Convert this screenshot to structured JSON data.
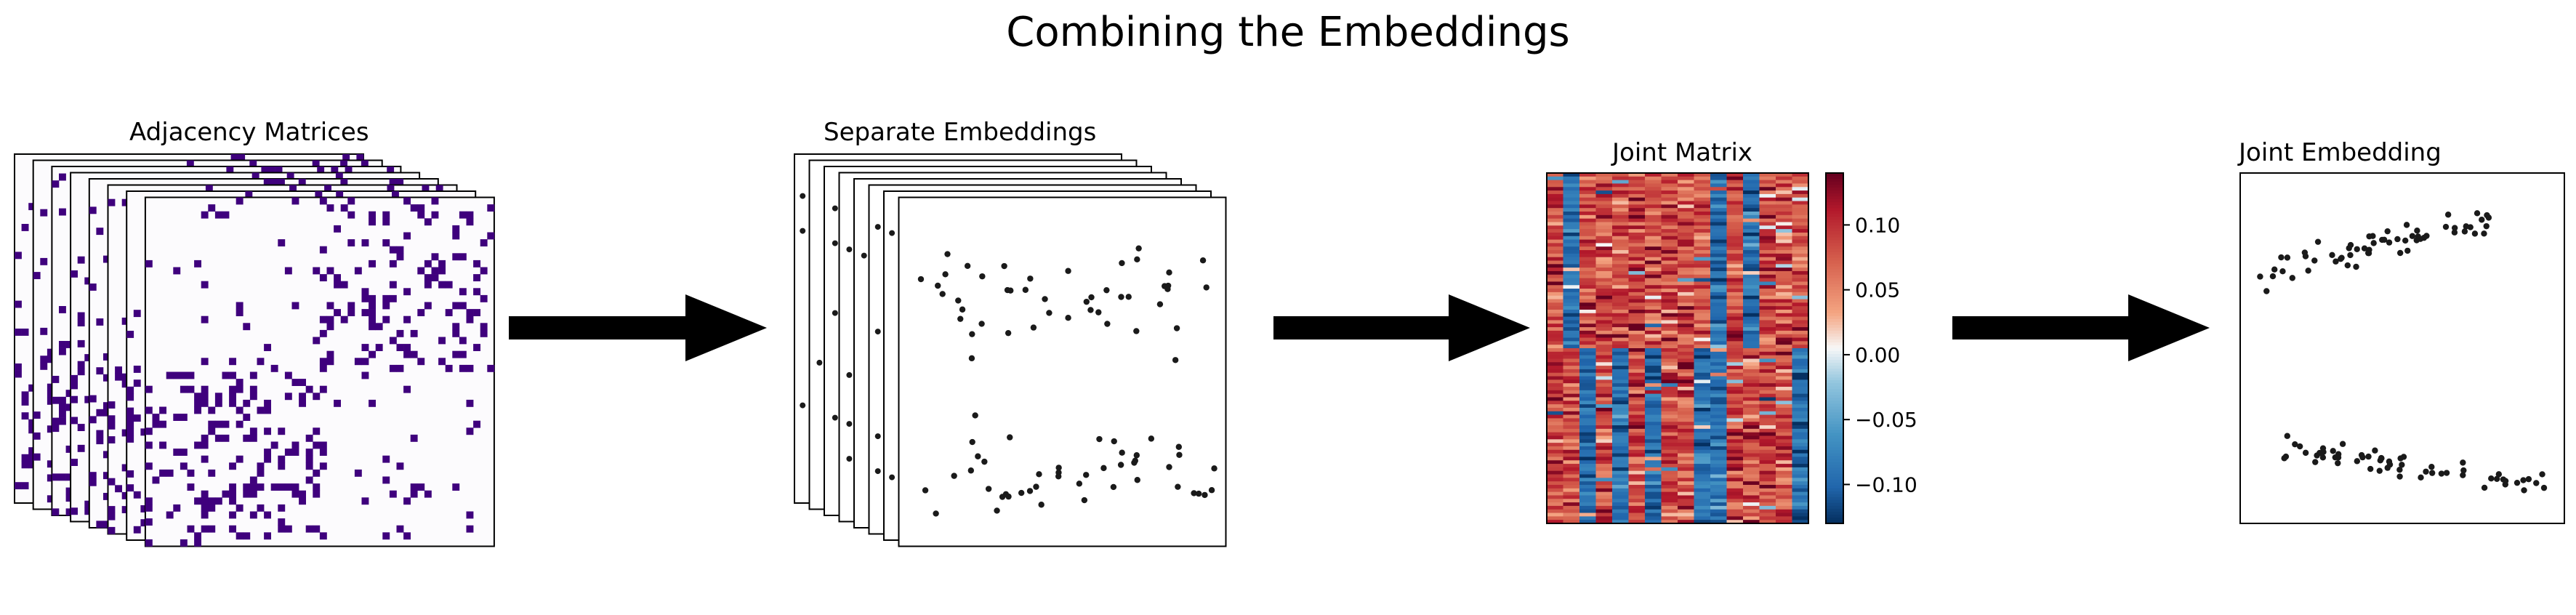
{
  "title": "Combining the Embeddings",
  "panels": {
    "adjacency": {
      "label": "Adjacency Matrices",
      "stack_count": 8,
      "matrix_size": 50,
      "fill_color": "#3f007d",
      "background_color": "#fcfbfd"
    },
    "separate": {
      "label": "Separate Embeddings",
      "stack_count": 8,
      "point_color": "#1a1a1a"
    },
    "joint_matrix": {
      "label": "Joint Matrix",
      "colormap": "RdBu_r",
      "vmin": -0.13,
      "vmax": 0.14,
      "colorbar_ticks": [
        "0.10",
        "0.05",
        "0.00",
        "−0.05",
        "−0.10"
      ],
      "colorbar_tick_values": [
        0.1,
        0.05,
        0.0,
        -0.05,
        -0.1
      ],
      "rows": 100,
      "columns": 16,
      "block_split": 0.5
    },
    "joint_embedding": {
      "label": "Joint Embedding",
      "point_color": "#1a1a1a"
    }
  },
  "arrows": {
    "count": 3,
    "color": "#000000"
  }
}
